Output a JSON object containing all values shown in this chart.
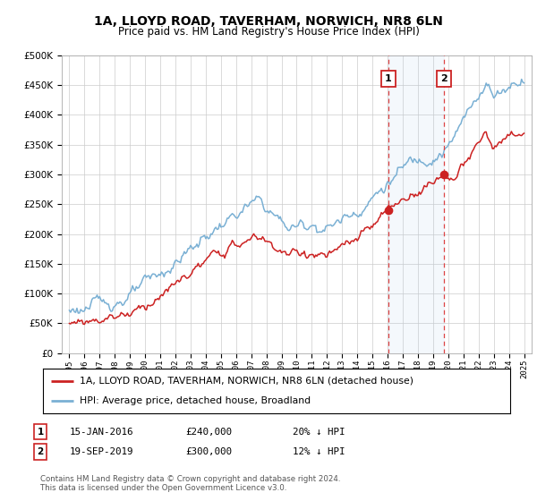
{
  "title": "1A, LLOYD ROAD, TAVERHAM, NORWICH, NR8 6LN",
  "subtitle": "Price paid vs. HM Land Registry's House Price Index (HPI)",
  "ylim": [
    0,
    500000
  ],
  "yticks": [
    0,
    50000,
    100000,
    150000,
    200000,
    250000,
    300000,
    350000,
    400000,
    450000,
    500000
  ],
  "hpi_color": "#7ab0d4",
  "price_color": "#cc2222",
  "vline_color": "#dd4444",
  "background_color": "#ffffff",
  "legend_label1": "1A, LLOYD ROAD, TAVERHAM, NORWICH, NR8 6LN (detached house)",
  "legend_label2": "HPI: Average price, detached house, Broadland",
  "ann1_date": "15-JAN-2016",
  "ann1_price": "£240,000",
  "ann1_note": "20% ↓ HPI",
  "ann1_x": 2016.04,
  "ann1_y": 240000,
  "ann2_date": "19-SEP-2019",
  "ann2_price": "£300,000",
  "ann2_note": "12% ↓ HPI",
  "ann2_x": 2019.72,
  "ann2_y": 300000,
  "footer": "Contains HM Land Registry data © Crown copyright and database right 2024.\nThis data is licensed under the Open Government Licence v3.0.",
  "xmin": 1994.5,
  "xmax": 2025.5
}
